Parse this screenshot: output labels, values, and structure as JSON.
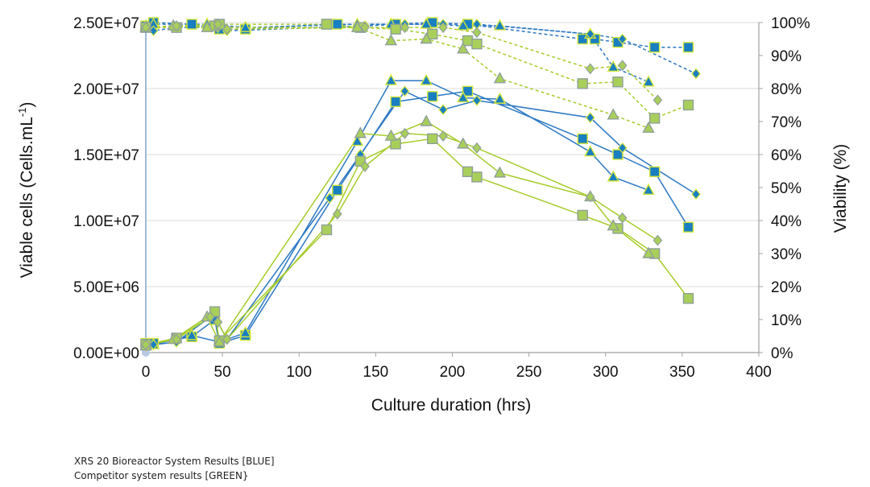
{
  "colors": {
    "blue": "#2b78c4",
    "blue_marker": "#1a7fc0",
    "blue_marker_edge": "#d4e63a",
    "green": "#a6cc2a",
    "green_marker": "#a9cf5b",
    "green_marker_edge": "#8f9f9a",
    "grid": "#dcdcdc",
    "axis": "#a0a0a0"
  },
  "captions": {
    "line1": "XRS 20 Bioreactor System Results [BLUE]",
    "line2": "Competitor system results [GREEN}"
  },
  "chart_data": {
    "type": "line",
    "title": "",
    "xlabel": "Culture duration (hrs)",
    "ylabel": "Viable cells (Cells.mL",
    "ylabel_superscript": "-1",
    "ylabel_close": ")",
    "y2label": "Viability (%)",
    "xlim": [
      0,
      400
    ],
    "ylim": [
      0,
      25000000
    ],
    "y2lim": [
      0,
      100
    ],
    "x_ticks": [
      "0",
      "50",
      "100",
      "150",
      "200",
      "250",
      "300",
      "350",
      "400"
    ],
    "y_ticks": [
      "0.00E+00",
      "5.00E+06",
      "1.00E+07",
      "1.50E+07",
      "2.00E+07",
      "2.50E+07"
    ],
    "y2_ticks": [
      "0%",
      "10%",
      "20%",
      "30%",
      "40%",
      "50%",
      "60%",
      "70%",
      "80%",
      "90%",
      "100%"
    ],
    "grid": "horizontal",
    "series": [
      {
        "name": "Blue square VCD",
        "system": "blue",
        "marker": "square",
        "axis": "left",
        "dashed": false,
        "x": [
          0,
          5,
          30,
          45,
          48,
          65,
          125,
          163,
          187,
          210,
          285,
          308,
          332,
          354
        ],
        "y": [
          700000,
          700000,
          1200000,
          2500000,
          700000,
          1300000,
          12300000,
          19000000,
          19400000,
          19800000,
          16200000,
          15000000,
          13700000,
          9500000
        ]
      },
      {
        "name": "Blue triangle VCD",
        "system": "blue",
        "marker": "triangle",
        "axis": "left",
        "dashed": false,
        "x": [
          0,
          5,
          30,
          48,
          65,
          138,
          160,
          183,
          207,
          231,
          290,
          305,
          328
        ],
        "y": [
          500000,
          600000,
          1300000,
          800000,
          1500000,
          16000000,
          20600000,
          20600000,
          19300000,
          19200000,
          15200000,
          13300000,
          12300000
        ]
      },
      {
        "name": "Blue diamond VCD",
        "system": "blue",
        "marker": "diamond",
        "axis": "left",
        "dashed": false,
        "x": [
          0,
          5,
          20,
          42,
          47,
          53,
          120,
          140,
          169,
          194,
          216,
          290,
          311,
          359
        ],
        "y": [
          500000,
          600000,
          800000,
          2700000,
          2300000,
          1000000,
          11700000,
          15000000,
          19800000,
          18400000,
          19100000,
          17800000,
          15500000,
          12000000
        ]
      },
      {
        "name": "Green square VCD",
        "system": "green",
        "marker": "square",
        "axis": "left",
        "dashed": false,
        "x": [
          0,
          20,
          45,
          48,
          118,
          140,
          163,
          187,
          210,
          216,
          285,
          308,
          332,
          354
        ],
        "y": [
          600000,
          1100000,
          3100000,
          900000,
          9300000,
          14500000,
          15800000,
          16200000,
          13700000,
          13300000,
          10400000,
          9400000,
          7500000,
          4100000
        ]
      },
      {
        "name": "Green triangle VCD",
        "system": "green",
        "marker": "triangle",
        "axis": "left",
        "dashed": false,
        "x": [
          0,
          18,
          40,
          48,
          140,
          160,
          183,
          207,
          231,
          290,
          305,
          328
        ],
        "y": [
          500000,
          1000000,
          2700000,
          800000,
          16600000,
          16400000,
          17500000,
          15800000,
          13600000,
          11800000,
          9600000,
          7500000
        ]
      },
      {
        "name": "Green diamond VCD",
        "system": "green",
        "marker": "diamond",
        "axis": "left",
        "dashed": false,
        "x": [
          0,
          20,
          42,
          47,
          53,
          125,
          143,
          169,
          194,
          216,
          290,
          311,
          334
        ],
        "y": [
          600000,
          1000000,
          2700000,
          2300000,
          1000000,
          10500000,
          14100000,
          16600000,
          16400000,
          15500000,
          11800000,
          10200000,
          8500000
        ]
      },
      {
        "name": "Blue square viability",
        "system": "blue",
        "marker": "square",
        "axis": "right",
        "dashed": true,
        "x": [
          0,
          5,
          30,
          48,
          65,
          118,
          125,
          163,
          187,
          210,
          285,
          293,
          308,
          332,
          354
        ],
        "y": [
          99,
          100,
          99.5,
          98,
          98,
          99.5,
          99.5,
          99.5,
          100,
          99.5,
          95,
          95,
          94,
          92.5,
          92.5
        ]
      },
      {
        "name": "Blue triangle viability",
        "system": "blue",
        "marker": "triangle",
        "axis": "right",
        "dashed": true,
        "x": [
          0,
          5,
          40,
          65,
          138,
          160,
          183,
          207,
          231,
          290,
          305,
          328
        ],
        "y": [
          99,
          99.5,
          99.5,
          98.5,
          99.5,
          99.5,
          99.5,
          99,
          99,
          96.5,
          86.5,
          82
        ]
      },
      {
        "name": "Blue diamond viability",
        "system": "blue",
        "marker": "diamond",
        "axis": "right",
        "dashed": true,
        "x": [
          0,
          5,
          20,
          47,
          53,
          143,
          169,
          194,
          216,
          290,
          311,
          359
        ],
        "y": [
          98.5,
          97.5,
          98.5,
          98.5,
          97.5,
          99,
          99.5,
          99.5,
          99.5,
          96.5,
          95,
          84.5
        ]
      },
      {
        "name": "Green square viability",
        "system": "green",
        "marker": "square",
        "axis": "right",
        "dashed": true,
        "x": [
          0,
          20,
          45,
          48,
          118,
          140,
          163,
          187,
          210,
          216,
          285,
          308,
          332,
          354
        ],
        "y": [
          98.5,
          98.5,
          99,
          99.5,
          99.5,
          98.5,
          98,
          96.5,
          94.5,
          93.5,
          81.5,
          82,
          71,
          75
        ]
      },
      {
        "name": "Green triangle viability",
        "system": "green",
        "marker": "triangle",
        "axis": "right",
        "dashed": true,
        "x": [
          0,
          18,
          40,
          138,
          160,
          183,
          207,
          231,
          305,
          328
        ],
        "y": [
          98.5,
          99,
          98.5,
          98.5,
          94.5,
          95,
          92,
          83,
          72,
          68
        ]
      },
      {
        "name": "Green diamond viability",
        "system": "green",
        "marker": "diamond",
        "axis": "right",
        "dashed": true,
        "x": [
          0,
          20,
          47,
          53,
          143,
          169,
          194,
          216,
          290,
          311,
          334
        ],
        "y": [
          98.5,
          99,
          99.5,
          98,
          98.5,
          98.5,
          98.5,
          97,
          86,
          87,
          76.5
        ]
      }
    ]
  }
}
